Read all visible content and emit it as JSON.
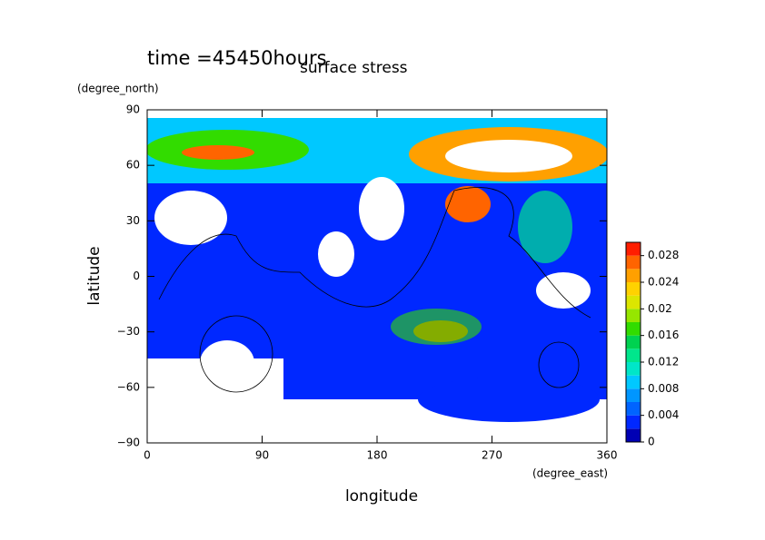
{
  "chart_data": {
    "type": "contour",
    "title": "surface stress",
    "subtitle": "time =45450hours",
    "x_label": "longitude",
    "x_unit": "(degree_east)",
    "y_label": "latitude",
    "y_unit": "(degree_north)",
    "xlim": [
      0,
      360
    ],
    "xticks": [
      0,
      90,
      180,
      270,
      360
    ],
    "ylim": [
      -90,
      90
    ],
    "yticks": [
      {
        "value": -90,
        "label": "−90"
      },
      {
        "value": -60,
        "label": "−60"
      },
      {
        "value": -30,
        "label": "−30"
      },
      0,
      30,
      60,
      90
    ],
    "levels": [
      0,
      0.002,
      0.004,
      0.006,
      0.008,
      0.01,
      0.012,
      0.014,
      0.016,
      0.018,
      0.02,
      0.022,
      0.024,
      0.026,
      0.028,
      0.03
    ],
    "level_colors": [
      "#0000b4",
      "#0028ff",
      "#0064ff",
      "#0096ff",
      "#00c8ff",
      "#00e6c8",
      "#00e68c",
      "#00d250",
      "#32dc00",
      "#96e600",
      "#dce600",
      "#ffd200",
      "#ffa000",
      "#ff6400",
      "#ff1e00"
    ],
    "colorbar_ticks": [
      0,
      0.004,
      0.008,
      0.012,
      0.016,
      0.02,
      0.024,
      0.028
    ]
  }
}
